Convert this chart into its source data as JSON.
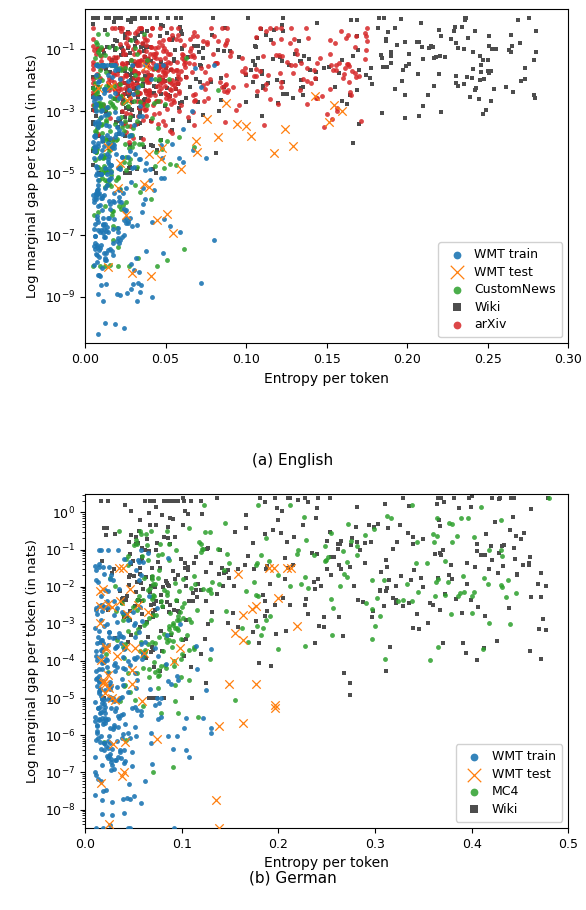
{
  "fig_width": 5.86,
  "fig_height": 9.1,
  "dpi": 100,
  "subplot_top_label": "(a) English",
  "subplot_bot_label": "(b) German",
  "xlabel": "Entropy per token",
  "ylabel": "Log marginal gap per token (in nats)",
  "top": {
    "xlim": [
      0.0,
      0.3
    ],
    "ylim_log": [
      -10.5,
      0.3
    ],
    "xticks": [
      0.0,
      0.05,
      0.1,
      0.15,
      0.2,
      0.25,
      0.3
    ],
    "yticks_log": [
      -9,
      -7,
      -5,
      -3,
      -1
    ],
    "legend_order": [
      "WMT train",
      "WMT test",
      "CustomNews",
      "Wiki",
      "arXiv"
    ]
  },
  "bot": {
    "xlim": [
      0.0,
      0.5
    ],
    "ylim_log": [
      -8.5,
      0.5
    ],
    "xticks": [
      0.0,
      0.1,
      0.2,
      0.3,
      0.4,
      0.5
    ],
    "legend_order": [
      "WMT train",
      "WMT test",
      "MC4",
      "Wiki"
    ]
  },
  "colors": {
    "WMT train": "#1f77b4",
    "WMT test": "#ff7f0e",
    "CustomNews": "#2ca02c",
    "Wiki": "#4d4d4d",
    "arXiv": "#d62728",
    "MC4": "#2ca02c"
  }
}
